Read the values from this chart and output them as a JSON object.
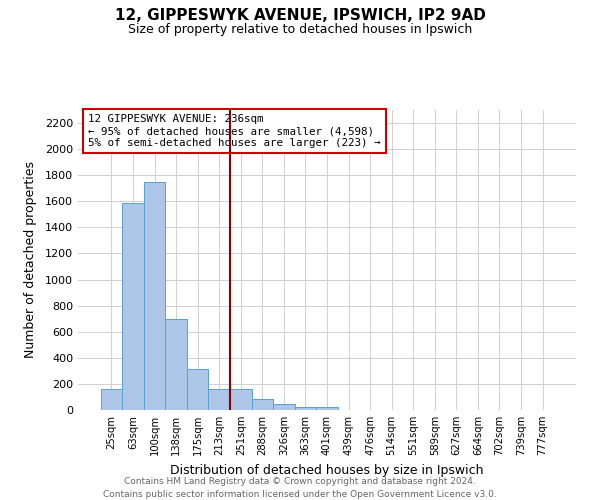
{
  "title": "12, GIPPESWYK AVENUE, IPSWICH, IP2 9AD",
  "subtitle": "Size of property relative to detached houses in Ipswich",
  "xlabel": "Distribution of detached houses by size in Ipswich",
  "ylabel": "Number of detached properties",
  "bar_labels": [
    "25sqm",
    "63sqm",
    "100sqm",
    "138sqm",
    "175sqm",
    "213sqm",
    "251sqm",
    "288sqm",
    "326sqm",
    "363sqm",
    "401sqm",
    "439sqm",
    "476sqm",
    "514sqm",
    "551sqm",
    "589sqm",
    "627sqm",
    "664sqm",
    "702sqm",
    "739sqm",
    "777sqm"
  ],
  "bar_heights": [
    160,
    1590,
    1750,
    700,
    315,
    160,
    160,
    85,
    45,
    25,
    20,
    0,
    0,
    0,
    0,
    0,
    0,
    0,
    0,
    0,
    0
  ],
  "bar_color": "#aec6e8",
  "bar_edge_color": "#5a9fd4",
  "property_line_x": 5.5,
  "property_line_color": "#8b0000",
  "annotation_line1": "12 GIPPESWYK AVENUE: 236sqm",
  "annotation_line2": "← 95% of detached houses are smaller (4,598)",
  "annotation_line3": "5% of semi-detached houses are larger (223) →",
  "ylim": [
    0,
    2300
  ],
  "yticks": [
    0,
    200,
    400,
    600,
    800,
    1000,
    1200,
    1400,
    1600,
    1800,
    2000,
    2200
  ],
  "footer_line1": "Contains HM Land Registry data © Crown copyright and database right 2024.",
  "footer_line2": "Contains public sector information licensed under the Open Government Licence v3.0.",
  "background_color": "#ffffff",
  "grid_color": "#d0d0d0",
  "title_fontsize": 11,
  "subtitle_fontsize": 9
}
